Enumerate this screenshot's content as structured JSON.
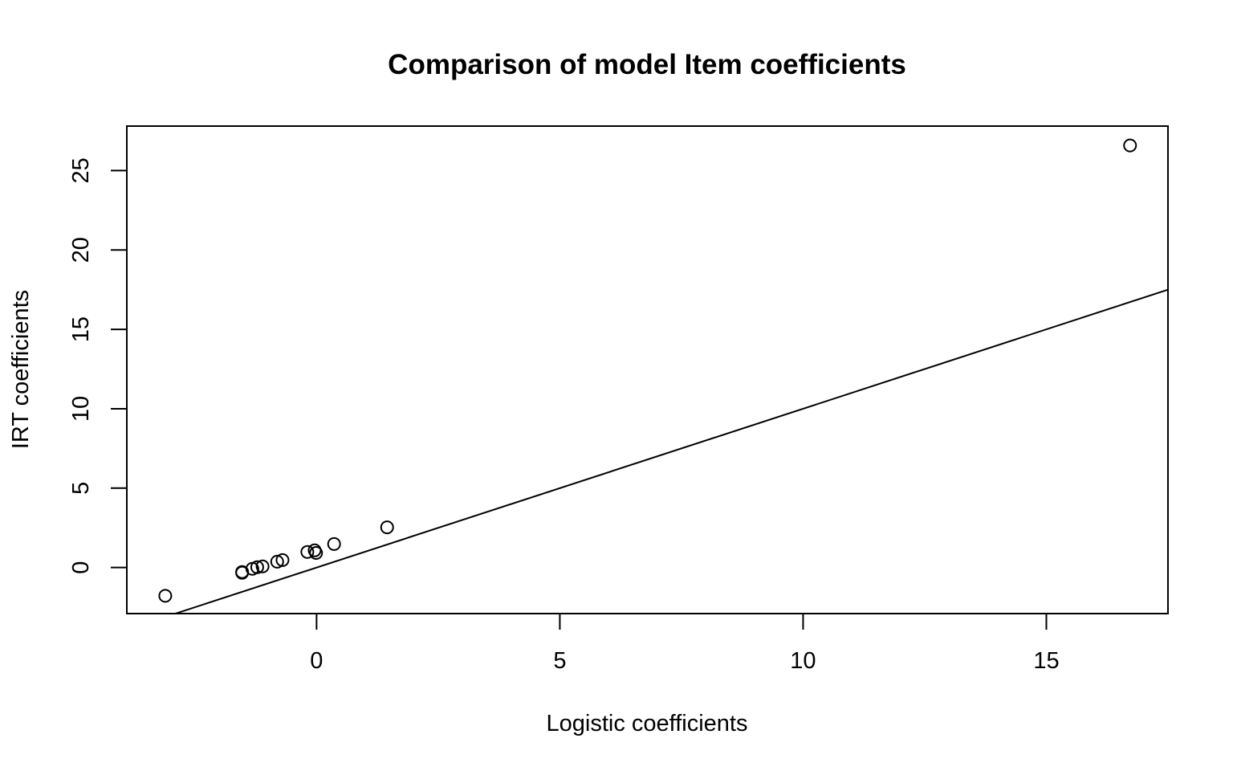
{
  "chart_data": {
    "type": "scatter",
    "title": "Comparison of model Item coefficients",
    "xlabel": "Logistic coefficients",
    "ylabel": "IRT coefficients",
    "xlim": [
      -3.9,
      17.5
    ],
    "ylim": [
      -2.9,
      27.8
    ],
    "xticks": [
      0,
      5,
      10,
      15
    ],
    "yticks": [
      0,
      5,
      10,
      15,
      20,
      25
    ],
    "grid": false,
    "legend": "none",
    "points": [
      {
        "x": -3.11,
        "y": -1.78
      },
      {
        "x": -1.53,
        "y": -0.28
      },
      {
        "x": -1.53,
        "y": -0.33
      },
      {
        "x": -1.32,
        "y": -0.08
      },
      {
        "x": -1.22,
        "y": 0.02
      },
      {
        "x": -1.11,
        "y": 0.07
      },
      {
        "x": -0.81,
        "y": 0.37
      },
      {
        "x": -0.7,
        "y": 0.47
      },
      {
        "x": -0.19,
        "y": 0.98
      },
      {
        "x": -0.04,
        "y": 1.08
      },
      {
        "x": -0.01,
        "y": 0.92
      },
      {
        "x": 0.36,
        "y": 1.48
      },
      {
        "x": 1.45,
        "y": 2.53
      },
      {
        "x": 16.72,
        "y": 26.58
      }
    ],
    "reference_line": {
      "intercept": 0,
      "slope": 1
    }
  }
}
